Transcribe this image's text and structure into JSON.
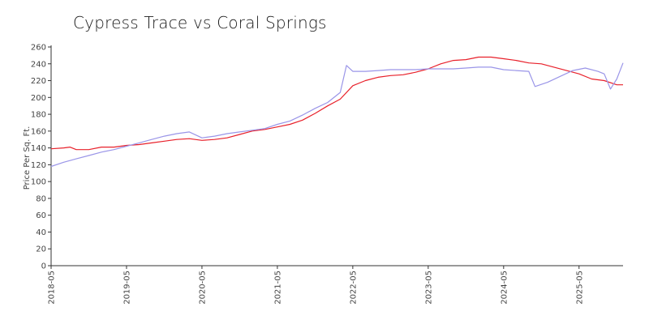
{
  "chart_data": {
    "type": "line",
    "title": "Cypress Trace vs Coral Springs",
    "xlabel": "",
    "ylabel": "Price Per Sq. Ft.",
    "ylim": [
      0,
      260
    ],
    "yticks": [
      0,
      20,
      40,
      60,
      80,
      100,
      120,
      140,
      160,
      180,
      200,
      220,
      240,
      260
    ],
    "x_start": "2018-05",
    "x_end": "2025-12",
    "xticks": [
      "2018-05",
      "2019-05",
      "2020-05",
      "2021-05",
      "2022-05",
      "2023-05",
      "2024-05",
      "2025-05"
    ],
    "grid": false,
    "series": [
      {
        "color": "#e8202a",
        "points": [
          [
            "2018-05",
            139
          ],
          [
            "2018-07",
            140
          ],
          [
            "2018-08",
            141
          ],
          [
            "2018-09",
            138
          ],
          [
            "2018-11",
            138
          ],
          [
            "2019-01",
            141
          ],
          [
            "2019-03",
            141
          ],
          [
            "2019-05",
            143
          ],
          [
            "2019-07",
            144
          ],
          [
            "2019-09",
            146
          ],
          [
            "2019-11",
            148
          ],
          [
            "2020-01",
            150
          ],
          [
            "2020-03",
            151
          ],
          [
            "2020-05",
            149
          ],
          [
            "2020-07",
            150
          ],
          [
            "2020-09",
            152
          ],
          [
            "2020-11",
            156
          ],
          [
            "2021-01",
            160
          ],
          [
            "2021-03",
            162
          ],
          [
            "2021-05",
            165
          ],
          [
            "2021-07",
            168
          ],
          [
            "2021-09",
            173
          ],
          [
            "2021-11",
            181
          ],
          [
            "2022-01",
            190
          ],
          [
            "2022-03",
            198
          ],
          [
            "2022-05",
            214
          ],
          [
            "2022-07",
            220
          ],
          [
            "2022-09",
            224
          ],
          [
            "2022-11",
            226
          ],
          [
            "2023-01",
            227
          ],
          [
            "2023-03",
            230
          ],
          [
            "2023-05",
            234
          ],
          [
            "2023-07",
            240
          ],
          [
            "2023-09",
            244
          ],
          [
            "2023-11",
            245
          ],
          [
            "2024-01",
            248
          ],
          [
            "2024-03",
            248
          ],
          [
            "2024-05",
            246
          ],
          [
            "2024-07",
            244
          ],
          [
            "2024-09",
            241
          ],
          [
            "2024-11",
            240
          ],
          [
            "2025-01",
            236
          ],
          [
            "2025-03",
            232
          ],
          [
            "2025-05",
            228
          ],
          [
            "2025-07",
            222
          ],
          [
            "2025-09",
            220
          ],
          [
            "2025-11",
            215
          ],
          [
            "2025-12",
            215
          ]
        ]
      },
      {
        "color": "#9a95e8",
        "points": [
          [
            "2018-05",
            118
          ],
          [
            "2018-07",
            123
          ],
          [
            "2018-09",
            127
          ],
          [
            "2018-11",
            131
          ],
          [
            "2019-01",
            135
          ],
          [
            "2019-03",
            138
          ],
          [
            "2019-05",
            142
          ],
          [
            "2019-07",
            146
          ],
          [
            "2019-09",
            150
          ],
          [
            "2019-11",
            154
          ],
          [
            "2020-01",
            157
          ],
          [
            "2020-03",
            159
          ],
          [
            "2020-05",
            152
          ],
          [
            "2020-07",
            154
          ],
          [
            "2020-09",
            157
          ],
          [
            "2020-11",
            159
          ],
          [
            "2021-01",
            161
          ],
          [
            "2021-03",
            163
          ],
          [
            "2021-05",
            168
          ],
          [
            "2021-07",
            172
          ],
          [
            "2021-09",
            179
          ],
          [
            "2021-11",
            187
          ],
          [
            "2022-01",
            194
          ],
          [
            "2022-03",
            206
          ],
          [
            "2022-04",
            238
          ],
          [
            "2022-05",
            231
          ],
          [
            "2022-07",
            231
          ],
          [
            "2022-09",
            232
          ],
          [
            "2022-11",
            233
          ],
          [
            "2023-01",
            233
          ],
          [
            "2023-03",
            233
          ],
          [
            "2023-05",
            234
          ],
          [
            "2023-07",
            234
          ],
          [
            "2023-09",
            234
          ],
          [
            "2023-11",
            235
          ],
          [
            "2024-01",
            236
          ],
          [
            "2024-03",
            236
          ],
          [
            "2024-05",
            233
          ],
          [
            "2024-07",
            232
          ],
          [
            "2024-09",
            231
          ],
          [
            "2024-10",
            213
          ],
          [
            "2024-12",
            218
          ],
          [
            "2025-02",
            225
          ],
          [
            "2025-04",
            232
          ],
          [
            "2025-06",
            235
          ],
          [
            "2025-08",
            231
          ],
          [
            "2025-09",
            228
          ],
          [
            "2025-10",
            210
          ],
          [
            "2025-11",
            222
          ],
          [
            "2025-12",
            241
          ]
        ]
      }
    ]
  }
}
